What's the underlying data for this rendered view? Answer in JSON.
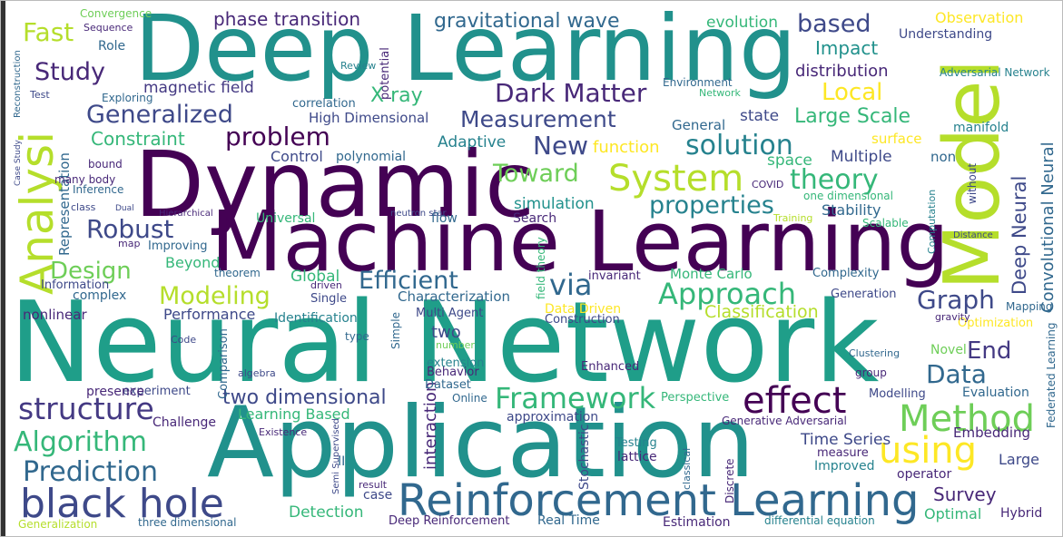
{
  "words": [
    "Neural Network",
    "Deep Learning",
    "Dynamic",
    "Machine Learning",
    "Application",
    "Model",
    "Reinforcement Learning",
    "black hole",
    "Analysi",
    "Method",
    "using",
    "effect",
    "structure",
    "Algorithm",
    "Prediction",
    "Framework",
    "Approach",
    "Efficient",
    "Graph",
    "Dark Matter",
    "Generalized",
    "Measurement",
    "Study",
    "Fast",
    "System",
    "theory",
    "solution",
    "New",
    "Toward",
    "problem",
    "Robust",
    "Design",
    "Modeling",
    "via",
    "properties",
    "Data",
    "End",
    "Survey",
    "Deep Neural",
    "Convolutional Neural",
    "two dimensional",
    "Learning Based",
    "interaction",
    "Large Scale",
    "Local",
    "based",
    "Impact",
    "distribution",
    "gravitational wave",
    "phase transition",
    "evolution",
    "Observation",
    "Understanding",
    "X ray",
    "magnetic field",
    "Constraint",
    "Representation",
    "Adaptive",
    "function",
    "state",
    "General",
    "space",
    "Multiple",
    "non",
    "surface",
    "manifold",
    "High Dimensional",
    "correlation",
    "Control",
    "polynomial",
    "simulation",
    "Search",
    "Stability",
    "Scalable",
    "one dimensional",
    "Universal",
    "flow",
    "Beyond",
    "Improving",
    "Global",
    "Characterization",
    "Multi Agent",
    "invariant",
    "Monte Carlo",
    "Complexity",
    "Generation",
    "Data Driven",
    "Construction",
    "Classification",
    "Performance",
    "Identification",
    "complex",
    "Information",
    "nonlinear",
    "two",
    "extension",
    "Behavior",
    "Dataset",
    "Enhanced",
    "Novel",
    "Optimization",
    "Embedding",
    "Evaluation",
    "Modelling",
    "Time Series",
    "measure",
    "Improved",
    "Large",
    "Generative Adversarial",
    "experiment",
    "presence",
    "Comparison",
    "Challenge",
    "approximation",
    "Testing",
    "lattice",
    "Detection",
    "Deep Reinforcement",
    "Real Time",
    "Estimation",
    "differential equation",
    "Optimal",
    "Hybrid",
    "operator",
    "three dimensional",
    "Generalization",
    "case",
    "Online",
    "Stochastic",
    "Perspective",
    "group",
    "Role",
    "Sequence",
    "Convergence",
    "Environment",
    "Network",
    "Inference",
    "bound",
    "many body",
    "class",
    "Exploring",
    "Review",
    "potential",
    "COVID",
    "Training",
    "Mapping",
    "gravity",
    "Clustering",
    "Test",
    "II",
    "result",
    "Code",
    "type",
    "number",
    "algebra",
    "Existence",
    "Federated Learning",
    "Adversarial Network",
    "Distance",
    "Simple",
    "Single",
    "driven",
    "theorem",
    "map",
    "Dual",
    "Hierarchical",
    "neutron star",
    "Case Study",
    "Reconstruction",
    "Semi Supervised",
    "classical",
    "Discrete",
    "Computation",
    "without",
    "field theory"
  ]
}
